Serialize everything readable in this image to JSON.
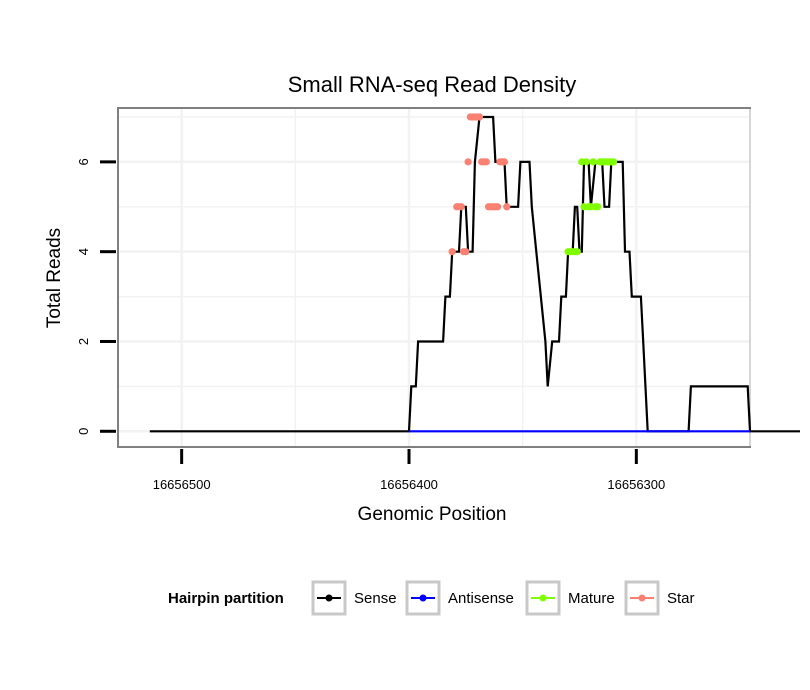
{
  "chart_data": {
    "type": "line",
    "title": "Small RNA-seq Read Density",
    "xlabel": "Genomic Position",
    "ylabel": "Total Reads",
    "x_reversed": true,
    "xlim": [
      16656528,
      16656250
    ],
    "ylim": [
      -0.35,
      7.2
    ],
    "x_ticks": [
      16656500,
      16656400,
      16656300
    ],
    "x_tick_labels": [
      "16656500",
      "16656400",
      "16656300"
    ],
    "y_ticks": [
      0,
      2,
      4,
      6
    ],
    "y_tick_labels": [
      "0",
      "2",
      "4",
      "6"
    ],
    "grid": true,
    "legend": {
      "title": "Hairpin partition",
      "position": "bottom",
      "entries": [
        {
          "name": "Sense",
          "color": "#000000"
        },
        {
          "name": "Antisense",
          "color": "#0000ff"
        },
        {
          "name": "Mature",
          "color": "#80ff00"
        },
        {
          "name": "Star",
          "color": "#fa8072"
        }
      ]
    },
    "series": [
      {
        "name": "Sense",
        "color": "#000000",
        "marker": false,
        "points": [
          [
            16656514,
            0
          ],
          [
            16656400,
            0
          ],
          [
            16656399,
            1
          ],
          [
            16656397,
            1
          ],
          [
            16656396,
            2
          ],
          [
            16656385,
            2
          ],
          [
            16656384,
            3
          ],
          [
            16656382,
            3
          ],
          [
            16656381,
            4
          ],
          [
            16656378,
            4
          ],
          [
            16656377,
            5
          ],
          [
            16656375,
            5
          ],
          [
            16656374,
            4
          ],
          [
            16656372,
            4
          ],
          [
            16656371,
            6
          ],
          [
            16656369,
            7
          ],
          [
            16656363,
            7
          ],
          [
            16656362,
            6
          ],
          [
            16656358,
            6
          ],
          [
            16656357,
            5
          ],
          [
            16656352,
            5
          ],
          [
            16656351,
            6
          ],
          [
            16656347,
            6
          ],
          [
            16656346,
            5
          ],
          [
            16656344,
            4
          ],
          [
            16656340,
            2
          ],
          [
            16656339,
            1
          ],
          [
            16656337,
            2
          ],
          [
            16656334,
            2
          ],
          [
            16656333,
            3
          ],
          [
            16656331,
            3
          ],
          [
            16656330,
            4
          ],
          [
            16656328,
            4
          ],
          [
            16656327,
            5
          ],
          [
            16656326,
            5
          ],
          [
            16656325,
            4
          ],
          [
            16656324,
            4
          ],
          [
            16656323,
            6
          ],
          [
            16656321,
            6
          ],
          [
            16656320,
            5
          ],
          [
            16656318,
            6
          ],
          [
            16656315,
            6
          ],
          [
            16656314,
            5
          ],
          [
            16656312,
            5
          ],
          [
            16656311,
            6
          ],
          [
            16656306,
            6
          ],
          [
            16656305,
            4
          ],
          [
            16656303,
            4
          ],
          [
            16656302,
            3
          ],
          [
            16656298,
            3
          ],
          [
            16656297,
            2
          ],
          [
            16656295,
            0
          ],
          [
            16656277,
            0
          ],
          [
            16656276,
            1
          ],
          [
            16656251,
            1
          ],
          [
            16656250,
            0
          ],
          [
            16656228,
            0
          ]
        ]
      },
      {
        "name": "Antisense",
        "color": "#0000ff",
        "marker": false,
        "points": [
          [
            16656400,
            0
          ],
          [
            16656250,
            0
          ]
        ]
      },
      {
        "name": "Mature",
        "color": "#80ff00",
        "marker": true,
        "points": [
          [
            16656330,
            4
          ],
          [
            16656329,
            4
          ],
          [
            16656328,
            4
          ],
          [
            16656327,
            4
          ],
          [
            16656326,
            4
          ],
          [
            16656324,
            6
          ],
          [
            16656323,
            5
          ],
          [
            16656322,
            6
          ],
          [
            16656321,
            5
          ],
          [
            16656320,
            5
          ],
          [
            16656319,
            6
          ],
          [
            16656318,
            5
          ],
          [
            16656317,
            5
          ],
          [
            16656316,
            6
          ],
          [
            16656315,
            6
          ],
          [
            16656314,
            6
          ],
          [
            16656313,
            6
          ],
          [
            16656312,
            6
          ],
          [
            16656311,
            6
          ],
          [
            16656310,
            6
          ]
        ]
      },
      {
        "name": "Star",
        "color": "#fa8072",
        "marker": true,
        "points": [
          [
            16656381,
            4
          ],
          [
            16656379,
            5
          ],
          [
            16656378,
            5
          ],
          [
            16656377,
            5
          ],
          [
            16656376,
            4
          ],
          [
            16656375,
            4
          ],
          [
            16656374,
            6
          ],
          [
            16656373,
            7
          ],
          [
            16656372,
            7
          ],
          [
            16656371,
            7
          ],
          [
            16656370,
            7
          ],
          [
            16656369,
            7
          ],
          [
            16656368,
            6
          ],
          [
            16656367,
            6
          ],
          [
            16656366,
            6
          ],
          [
            16656365,
            5
          ],
          [
            16656364,
            5
          ],
          [
            16656363,
            5
          ],
          [
            16656362,
            5
          ],
          [
            16656361,
            5
          ],
          [
            16656360,
            6
          ],
          [
            16656359,
            6
          ],
          [
            16656358,
            6
          ],
          [
            16656357,
            5
          ]
        ]
      }
    ]
  }
}
